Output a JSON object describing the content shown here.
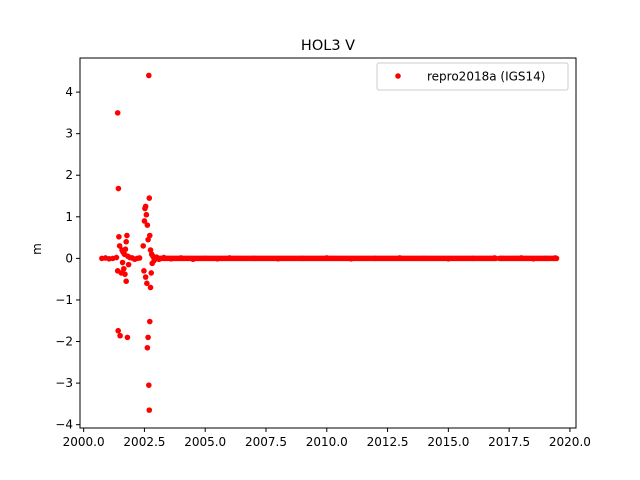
{
  "chart_data": {
    "type": "scatter",
    "title": "HOL3 V",
    "xlabel": "",
    "ylabel": "m",
    "xlim": [
      1999.85,
      2020.25
    ],
    "ylim": [
      -4.08,
      4.82
    ],
    "x_ticks": [
      2000.0,
      2002.5,
      2005.0,
      2007.5,
      2010.0,
      2012.5,
      2015.0,
      2017.5,
      2020.0
    ],
    "x_tick_labels": [
      "2000.0",
      "2002.5",
      "2005.0",
      "2007.5",
      "2010.0",
      "2012.5",
      "2015.0",
      "2017.5",
      "2020.0"
    ],
    "y_ticks": [
      -4,
      -3,
      -2,
      -1,
      0,
      1,
      2,
      3,
      4
    ],
    "y_tick_labels": [
      "−4",
      "−3",
      "−2",
      "−1",
      "0",
      "1",
      "2",
      "3",
      "4"
    ],
    "grid": false,
    "legend_position": "top-right",
    "series": [
      {
        "name": "repro2018a (IGS14)",
        "color": "#ff0000",
        "marker": "circle",
        "points": [
          [
            2000.75,
            0.0
          ],
          [
            2000.9,
            0.01
          ],
          [
            2001.05,
            -0.01
          ],
          [
            2001.2,
            0.0
          ],
          [
            2001.35,
            0.02
          ],
          [
            2001.4,
            -0.3
          ],
          [
            2001.4,
            3.5
          ],
          [
            2001.43,
            1.68
          ],
          [
            2001.45,
            0.52
          ],
          [
            2001.42,
            -1.74
          ],
          [
            2001.5,
            -1.86
          ],
          [
            2001.48,
            0.3
          ],
          [
            2001.55,
            -0.35
          ],
          [
            2001.58,
            0.2
          ],
          [
            2001.6,
            -0.1
          ],
          [
            2001.62,
            0.15
          ],
          [
            2001.65,
            -0.25
          ],
          [
            2001.68,
            0.1
          ],
          [
            2001.7,
            -0.38
          ],
          [
            2001.72,
            0.22
          ],
          [
            2001.75,
            0.4
          ],
          [
            2001.75,
            -0.55
          ],
          [
            2001.78,
            0.55
          ],
          [
            2001.8,
            -1.9
          ],
          [
            2001.82,
            0.05
          ],
          [
            2001.85,
            -0.15
          ],
          [
            2001.9,
            0.02
          ],
          [
            2002.0,
            0.01
          ],
          [
            2002.1,
            -0.02
          ],
          [
            2002.2,
            0.0
          ],
          [
            2002.3,
            0.01
          ],
          [
            2002.45,
            0.3
          ],
          [
            2002.48,
            -0.3
          ],
          [
            2002.5,
            0.9
          ],
          [
            2002.52,
            1.2
          ],
          [
            2002.55,
            1.25
          ],
          [
            2002.55,
            -0.45
          ],
          [
            2002.58,
            1.05
          ],
          [
            2002.6,
            -0.6
          ],
          [
            2002.62,
            0.8
          ],
          [
            2002.62,
            -2.15
          ],
          [
            2002.65,
            -1.9
          ],
          [
            2002.65,
            0.45
          ],
          [
            2002.68,
            4.4
          ],
          [
            2002.68,
            -3.05
          ],
          [
            2002.7,
            -3.65
          ],
          [
            2002.7,
            1.45
          ],
          [
            2002.72,
            0.55
          ],
          [
            2002.72,
            -1.52
          ],
          [
            2002.75,
            -0.7
          ],
          [
            2002.75,
            0.2
          ],
          [
            2002.78,
            -0.35
          ],
          [
            2002.8,
            0.1
          ],
          [
            2002.82,
            -0.12
          ],
          [
            2002.85,
            0.05
          ],
          [
            2002.9,
            -0.05
          ],
          [
            2002.95,
            0.02
          ],
          [
            2003.0,
            0.03
          ],
          [
            2003.1,
            -0.02
          ],
          [
            2003.3,
            0.02
          ],
          [
            2003.6,
            -0.01
          ],
          [
            2004.0,
            0.01
          ],
          [
            2004.5,
            -0.02
          ],
          [
            2005.0,
            0.0
          ],
          [
            2005.5,
            -0.01
          ],
          [
            2006.0,
            0.01
          ],
          [
            2007.0,
            0.0
          ],
          [
            2008.0,
            -0.01
          ],
          [
            2009.0,
            0.0
          ],
          [
            2010.0,
            0.01
          ],
          [
            2011.0,
            -0.01
          ],
          [
            2012.0,
            0.0
          ],
          [
            2013.0,
            0.01
          ],
          [
            2014.0,
            0.0
          ],
          [
            2015.0,
            -0.01
          ],
          [
            2016.0,
            0.0
          ],
          [
            2016.9,
            0.01
          ],
          [
            2017.2,
            0.0
          ],
          [
            2018.0,
            0.01
          ],
          [
            2018.5,
            -0.01
          ],
          [
            2019.0,
            0.0
          ],
          [
            2019.4,
            0.01
          ]
        ],
        "continuous_segments": [
          {
            "x_start": 2002.9,
            "x_end": 2016.95,
            "y": 0.0
          },
          {
            "x_start": 2017.1,
            "x_end": 2019.45,
            "y": 0.0
          }
        ]
      }
    ]
  }
}
